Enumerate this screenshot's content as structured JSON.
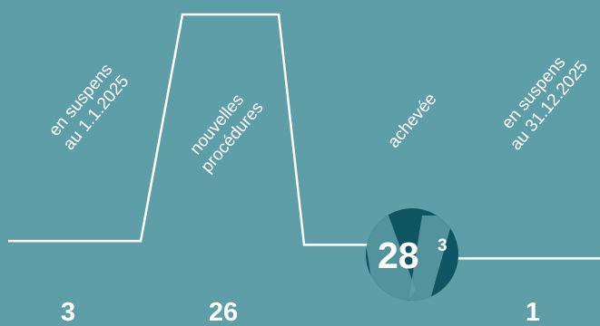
{
  "colors": {
    "background": "#5e9fa7",
    "line": "#ffffff",
    "badge_circle": "#0f5561",
    "badge_mark": "#5e9fa7"
  },
  "chart_data": {
    "type": "line",
    "stages": [
      {
        "label_line1": "en suspens",
        "label_line2": "au 1.1.2025",
        "count": "3"
      },
      {
        "label_line1": "nouvelles",
        "label_line2": "procédures",
        "count": "26"
      },
      {
        "label_line1": "achevée",
        "label_line2": "",
        "count": "28",
        "count_superscript": "3",
        "badge": true
      },
      {
        "label_line1": "en suspens",
        "label_line2": "au 31.12.2025",
        "count": "1"
      }
    ],
    "values": [
      3,
      29,
      1
    ]
  }
}
